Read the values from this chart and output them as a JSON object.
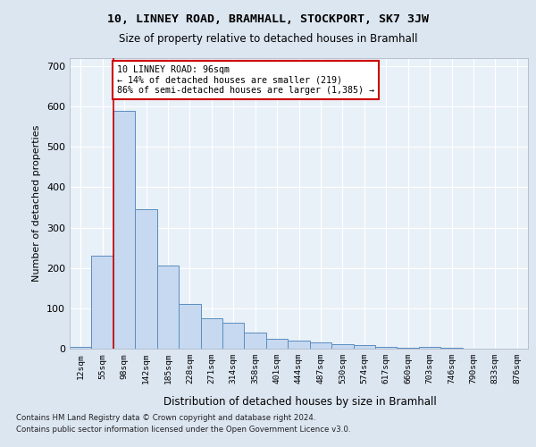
{
  "title1": "10, LINNEY ROAD, BRAMHALL, STOCKPORT, SK7 3JW",
  "title2": "Size of property relative to detached houses in Bramhall",
  "xlabel": "Distribution of detached houses by size in Bramhall",
  "ylabel": "Number of detached properties",
  "categories": [
    "12sqm",
    "55sqm",
    "98sqm",
    "142sqm",
    "185sqm",
    "228sqm",
    "271sqm",
    "314sqm",
    "358sqm",
    "401sqm",
    "444sqm",
    "487sqm",
    "530sqm",
    "574sqm",
    "617sqm",
    "660sqm",
    "703sqm",
    "746sqm",
    "790sqm",
    "833sqm",
    "876sqm"
  ],
  "values": [
    5,
    230,
    590,
    345,
    205,
    110,
    75,
    65,
    40,
    25,
    20,
    15,
    10,
    8,
    5,
    3,
    5,
    2,
    1,
    1,
    1
  ],
  "bar_color": "#c6d9f0",
  "bar_edge_color": "#5b8dc0",
  "highlight_bar_index": 2,
  "highlight_line_color": "#cc0000",
  "annotation_text": "10 LINNEY ROAD: 96sqm\n← 14% of detached houses are smaller (219)\n86% of semi-detached houses are larger (1,385) →",
  "annotation_box_color": "#ffffff",
  "annotation_border_color": "#cc0000",
  "ylim": [
    0,
    720
  ],
  "yticks": [
    0,
    100,
    200,
    300,
    400,
    500,
    600,
    700
  ],
  "footer1": "Contains HM Land Registry data © Crown copyright and database right 2024.",
  "footer2": "Contains public sector information licensed under the Open Government Licence v3.0.",
  "bg_color": "#dce6f1",
  "plot_bg_color": "#e8f0f8"
}
